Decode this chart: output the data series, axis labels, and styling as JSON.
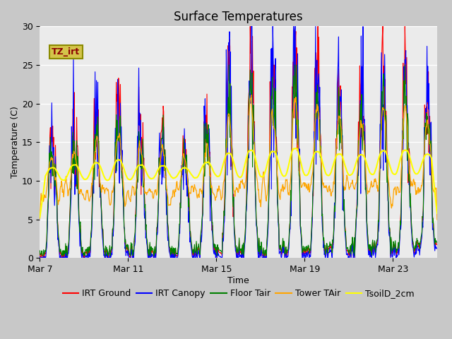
{
  "title": "Surface Temperatures",
  "xlabel": "Time",
  "ylabel": "Temperature (C)",
  "ylim": [
    0,
    30
  ],
  "ytick_positions": [
    0,
    5,
    10,
    15,
    20,
    25,
    30
  ],
  "xtick_labels": [
    "Mar 7",
    "Mar 11",
    "Mar 15",
    "Mar 19",
    "Mar 23"
  ],
  "xtick_days": [
    0,
    4,
    8,
    12,
    16
  ],
  "xlim": [
    0,
    18
  ],
  "plot_bg_color": "#ebebeb",
  "fig_bg_color": "#c8c8c8",
  "grid_color": "#ffffff",
  "series": [
    {
      "label": "IRT Ground",
      "color": "red"
    },
    {
      "label": "IRT Canopy",
      "color": "blue"
    },
    {
      "label": "Floor Tair",
      "color": "green"
    },
    {
      "label": "Tower TAir",
      "color": "orange"
    },
    {
      "label": "TsoilD_2cm",
      "color": "yellow"
    }
  ],
  "annotation_text": "TZ_irt",
  "title_fontsize": 12,
  "axis_label_fontsize": 9,
  "tick_fontsize": 9,
  "legend_fontsize": 9
}
